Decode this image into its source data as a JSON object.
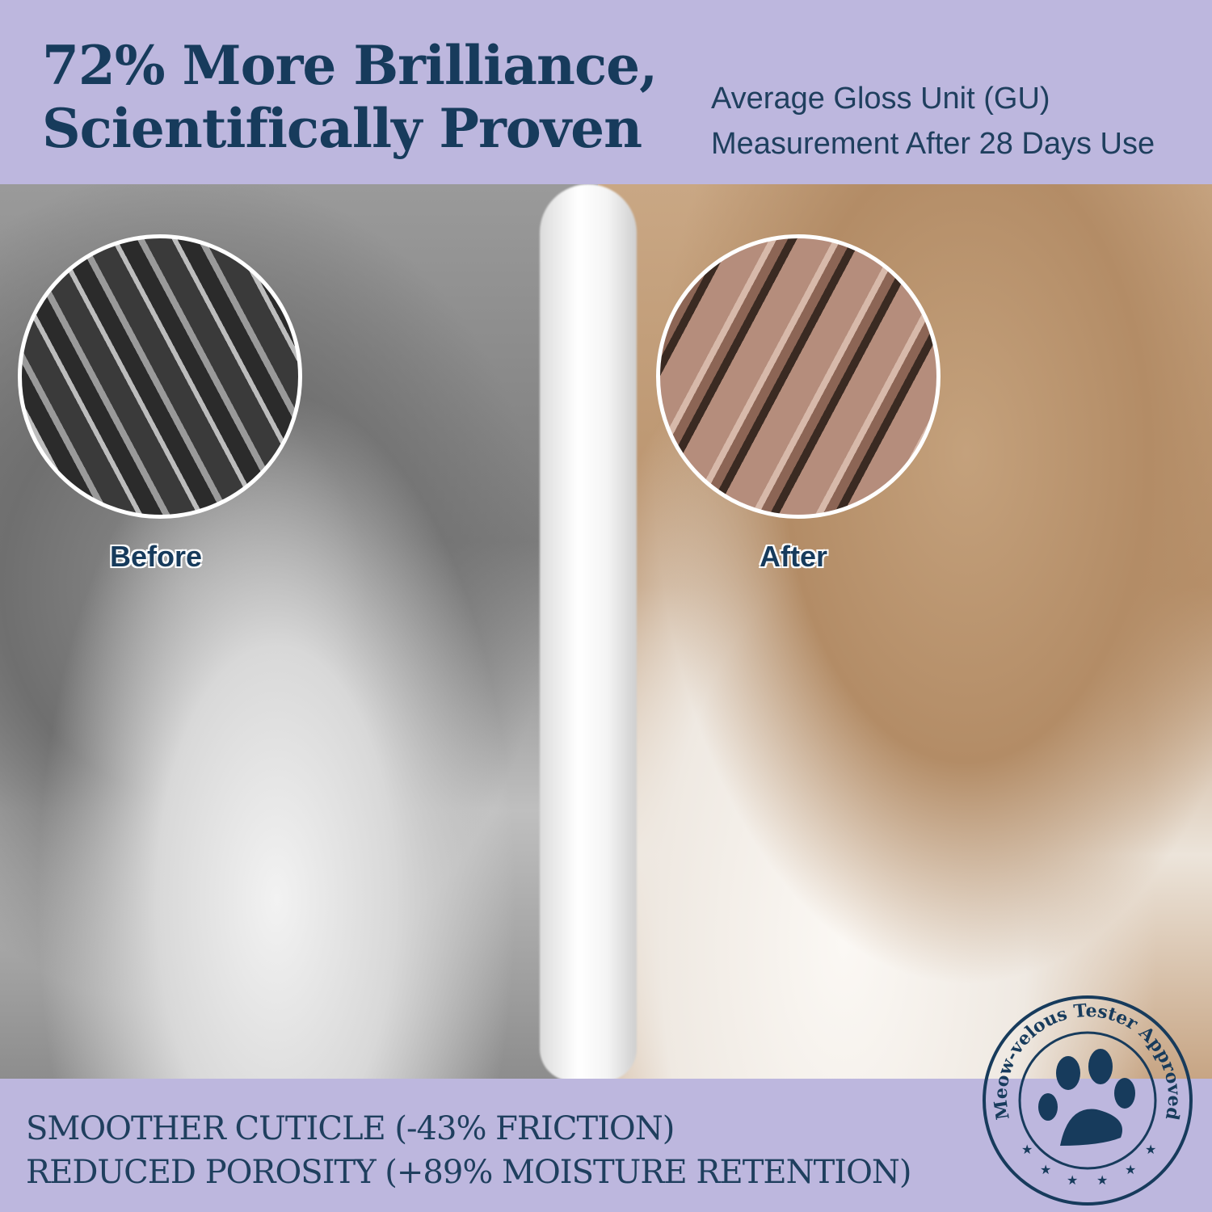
{
  "header": {
    "headline_line1": "72% More Brilliance,",
    "headline_line2": "Scientifically Proven",
    "subtitle_line1": "Average Gloss Unit (GU)",
    "subtitle_line2": "Measurement After 28 Days Use"
  },
  "comparison": {
    "before_label": "Before",
    "after_label": "After"
  },
  "claims": [
    "SMOOTHER CUTICLE (-43% FRICTION)",
    "REDUCED POROSITY (+89% MOISTURE RETENTION)"
  ],
  "stamp": {
    "text": "“Meow-velous Tester Approved”",
    "icon": "paw-print-icon"
  },
  "colors": {
    "band": "#bdb7de",
    "text": "#173b5c"
  }
}
